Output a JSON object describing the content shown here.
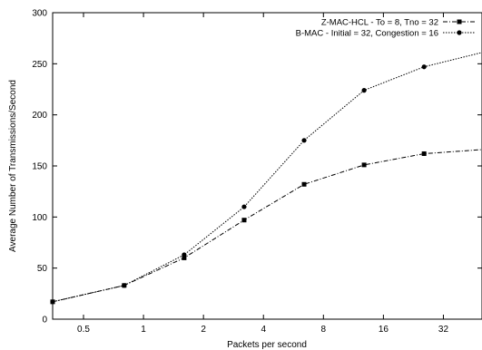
{
  "chart_data": {
    "type": "line",
    "xlabel": "Packets per second",
    "ylabel": "Average Number of Transmissions/Second",
    "x_scale": "log2",
    "xlim": [
      0.35,
      50
    ],
    "ylim": [
      0,
      300
    ],
    "x_ticks": [
      0.5,
      1,
      2,
      4,
      8,
      16,
      32
    ],
    "x_tick_labels": [
      "0.5",
      "1",
      "2",
      "4",
      "8",
      "16",
      "32"
    ],
    "y_ticks": [
      0,
      50,
      100,
      150,
      200,
      250,
      300
    ],
    "y_tick_labels": [
      "0",
      "50",
      "100",
      "150",
      "200",
      "250",
      "300"
    ],
    "grid": false,
    "legend_position": "top-right",
    "series": [
      {
        "name": "Z-MAC-HCL - To = 8, Tno = 32",
        "marker": "square",
        "dash": "dash-dot",
        "color": "#000000",
        "x": [
          0.35,
          0.8,
          1.6,
          3.2,
          6.4,
          12.8,
          25.6,
          50
        ],
        "y": [
          17,
          33,
          60,
          97,
          132,
          151,
          162,
          166
        ]
      },
      {
        "name": "B-MAC - Initial = 32, Congestion = 16",
        "marker": "circle",
        "dash": "dotted",
        "color": "#000000",
        "x": [
          0.35,
          0.8,
          1.6,
          3.2,
          6.4,
          12.8,
          25.6,
          50
        ],
        "y": [
          17,
          33,
          63,
          110,
          175,
          224,
          247,
          261
        ]
      }
    ]
  }
}
